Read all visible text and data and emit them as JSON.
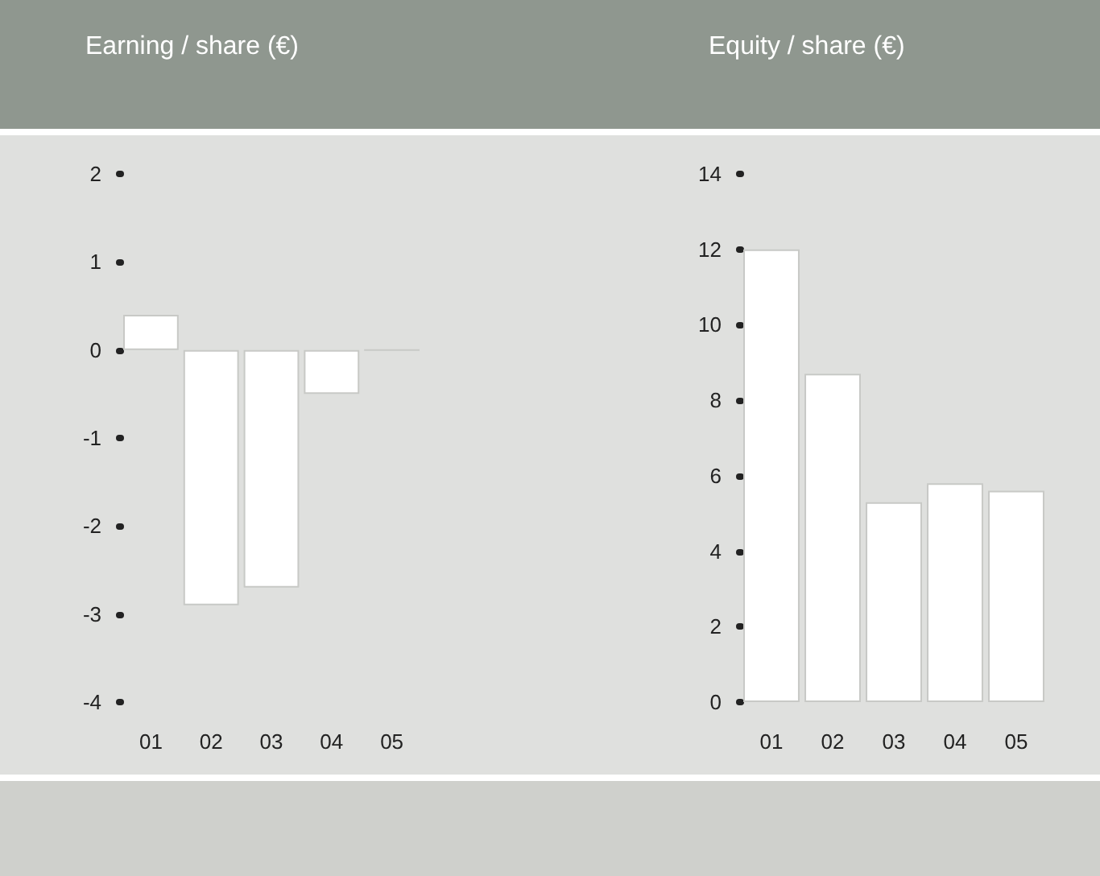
{
  "chart_data": [
    {
      "type": "bar",
      "title": "Earning / share (€)",
      "categories": [
        "01",
        "02",
        "03",
        "04",
        "05"
      ],
      "values": [
        0.4,
        -2.9,
        -2.7,
        -0.5,
        0
      ],
      "colors": [
        "#ffffff",
        "#ffffff",
        "#ffffff",
        "#ffffff",
        "#c8c9c6"
      ],
      "ylim": [
        -4,
        2
      ],
      "yticks": [
        -4,
        -3,
        -2,
        -1,
        0,
        1,
        2
      ],
      "grid": false
    },
    {
      "type": "bar",
      "title": "Equity / share (€)",
      "categories": [
        "01",
        "02",
        "03",
        "04",
        "05"
      ],
      "values": [
        12.0,
        8.7,
        5.3,
        5.8,
        5.6
      ],
      "color": "#ffffff",
      "ylim": [
        0,
        14
      ],
      "yticks": [
        0,
        2,
        4,
        6,
        8,
        10,
        12,
        14
      ],
      "grid": false
    }
  ]
}
